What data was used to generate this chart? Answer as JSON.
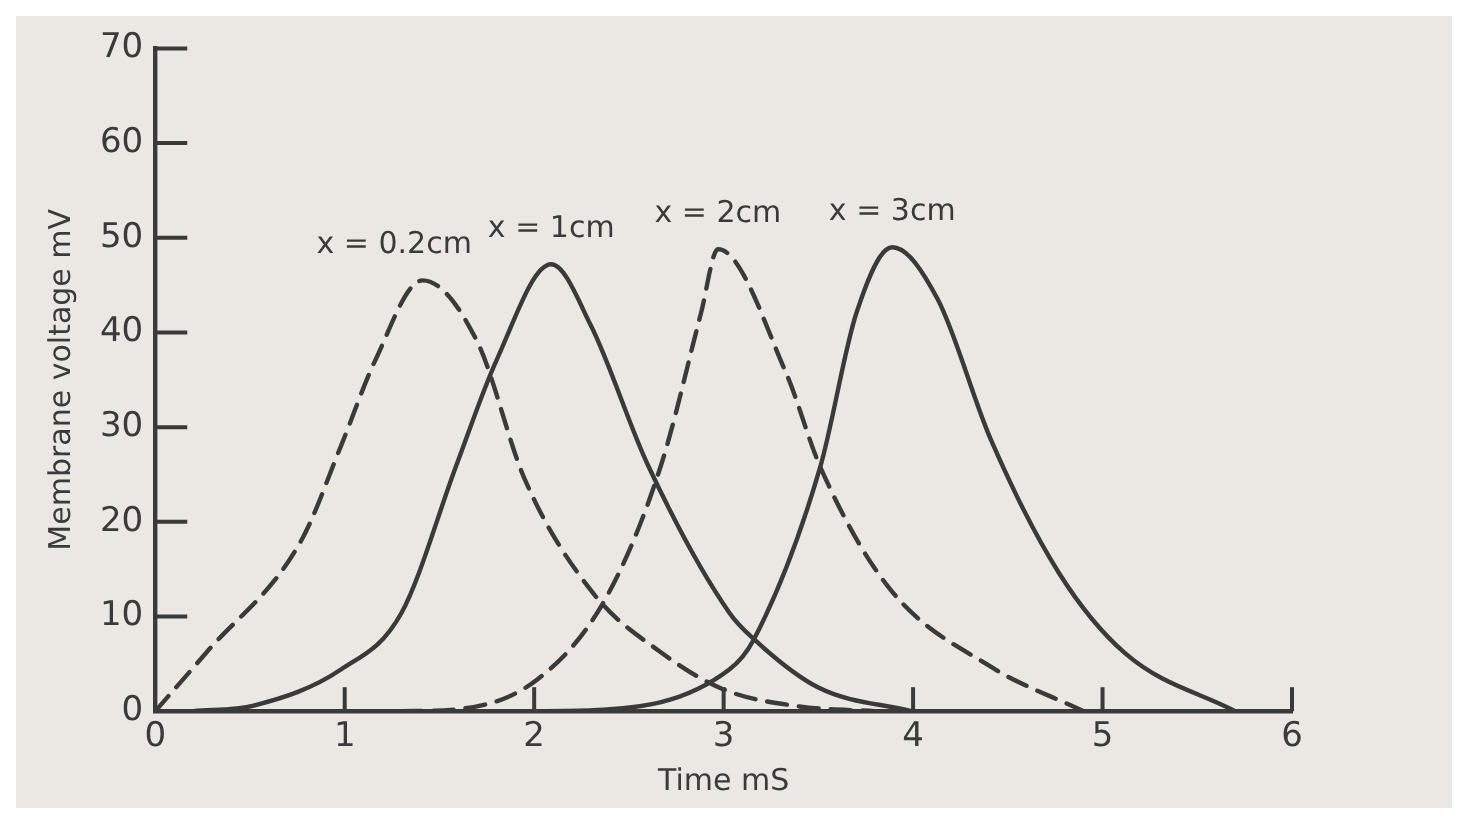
{
  "chart_data": {
    "type": "line",
    "xlabel": "Time mS",
    "ylabel": "Membrane voltage mV",
    "xlim": [
      0,
      6
    ],
    "ylim": [
      0,
      70
    ],
    "xticks": [
      0,
      1,
      2,
      3,
      4,
      5,
      6
    ],
    "yticks": [
      0,
      10,
      20,
      30,
      40,
      50,
      60,
      70
    ],
    "grid": false,
    "legend": false,
    "marker": "none",
    "series": [
      {
        "name": "x = 0.2cm",
        "color": "#3a3a3a",
        "line_style": "dashed",
        "x": [
          0,
          0.27,
          0.77,
          0.98,
          1.16,
          1.41,
          1.7,
          1.95,
          2.31,
          2.67,
          3.0,
          3.4,
          3.8
        ],
        "values": [
          0,
          6.2,
          18,
          28,
          37,
          45.5,
          39,
          24.5,
          12.5,
          6.2,
          2.3,
          0.5,
          0
        ]
      },
      {
        "name": "x = 1cm",
        "color": "#3a3a3a",
        "line_style": "solid",
        "x": [
          0.2,
          0.52,
          0.98,
          1.3,
          1.59,
          1.8,
          2.09,
          2.3,
          2.6,
          3.03,
          3.16,
          3.5,
          3.99
        ],
        "values": [
          0,
          0.6,
          4.4,
          10.4,
          26,
          37,
          47.2,
          40.7,
          26,
          10.4,
          7.6,
          2.5,
          0
        ]
      },
      {
        "name": "x = 2cm",
        "color": "#3a3a3a",
        "line_style": "dashed",
        "x": [
          1.3,
          1.59,
          2.02,
          2.38,
          2.67,
          2.88,
          2.97,
          3.33,
          3.51,
          3.87,
          4.41,
          4.9
        ],
        "values": [
          0,
          0.2,
          3.4,
          12,
          26,
          42,
          48.8,
          35.7,
          25.8,
          13.1,
          4.7,
          0
        ]
      },
      {
        "name": "x = 3cm",
        "color": "#3a3a3a",
        "line_style": "solid",
        "x": [
          2.0,
          2.31,
          3.03,
          3.16,
          3.51,
          3.7,
          3.89,
          4.13,
          4.41,
          4.77,
          5.12,
          5.7
        ],
        "values": [
          0,
          0.1,
          4.4,
          7.6,
          25.8,
          42,
          49,
          43.5,
          28.7,
          14.6,
          6.1,
          0
        ]
      }
    ]
  }
}
